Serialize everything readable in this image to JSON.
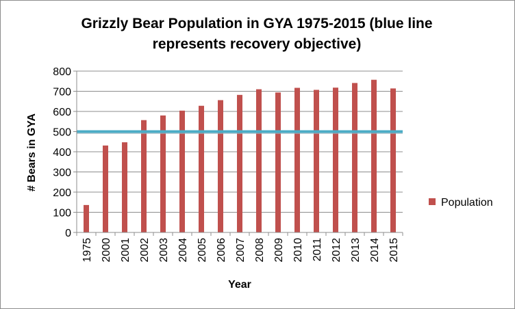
{
  "chart_data": {
    "type": "bar",
    "title_lines": [
      "Grizzly Bear Population  in GYA 1975-2015 (blue line",
      "represents recovery objective)"
    ],
    "xlabel": "Year",
    "ylabel": "# Bears in GYA",
    "categories": [
      "1975",
      "2000",
      "2001",
      "2002",
      "2003",
      "2004",
      "2005",
      "2006",
      "2007",
      "2008",
      "2009",
      "2010",
      "2011",
      "2012",
      "2013",
      "2014",
      "2015"
    ],
    "series": [
      {
        "name": "Population",
        "color": "#c0504d",
        "values": [
          136,
          431,
          447,
          557,
          580,
          604,
          628,
          656,
          682,
          710,
          694,
          717,
          707,
          718,
          741,
          757,
          714
        ]
      }
    ],
    "reference_line": {
      "value": 500,
      "color": "#4bacc6"
    },
    "ylim": [
      0,
      800
    ],
    "yticks": [
      0,
      100,
      200,
      300,
      400,
      500,
      600,
      700,
      800
    ],
    "grid": true,
    "legend_position": "right"
  }
}
